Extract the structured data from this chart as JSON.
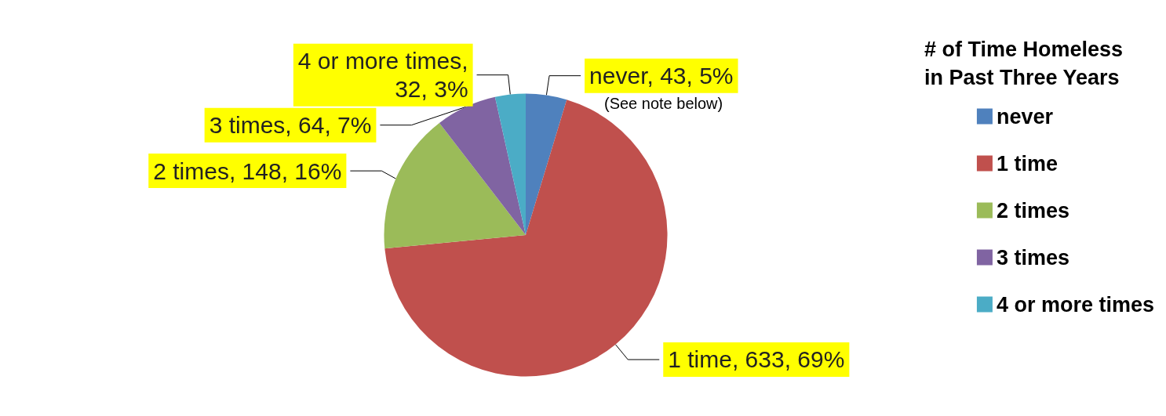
{
  "chart_data": {
    "type": "pie",
    "legend_title": "# of Time Homeless\nin Past Three Years",
    "categories": [
      "never",
      "1 time",
      "2 times",
      "3 times",
      "4 or more times"
    ],
    "values": [
      43,
      633,
      148,
      64,
      32
    ],
    "colors": [
      "#4f81bd",
      "#c0504d",
      "#9bbb59",
      "#8064a2",
      "#4bacc6"
    ],
    "value_labels": [
      "never, 43, 5%",
      "1 time, 633, 69%",
      "2 times, 148, 16%",
      "3 times, 64, 7%",
      "4 or more times,\n32, 3%"
    ],
    "annotations": [
      "(See note below)"
    ],
    "legend": "right"
  }
}
